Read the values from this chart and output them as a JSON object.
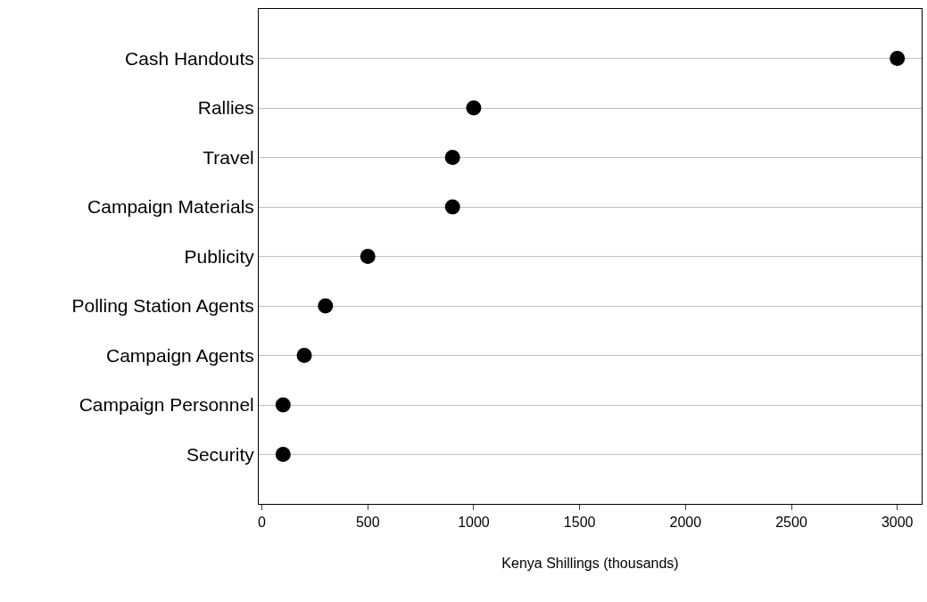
{
  "chart_data": {
    "type": "scatter",
    "orientation": "horizontal",
    "xlabel": "Kenya Shillings (thousands)",
    "categories": [
      "Cash Handouts",
      "Rallies",
      "Travel",
      "Campaign Materials",
      "Publicity",
      "Polling Station Agents",
      "Campaign Agents",
      "Campaign Personnel",
      "Security"
    ],
    "values": [
      3000,
      1000,
      900,
      900,
      500,
      300,
      200,
      100,
      100
    ],
    "color": "#000000",
    "marker": "circle",
    "xlim": [
      -15,
      3115
    ],
    "xticks": [
      0,
      500,
      1000,
      1500,
      2000,
      2500,
      3000
    ],
    "grid": "y",
    "legend": false
  }
}
